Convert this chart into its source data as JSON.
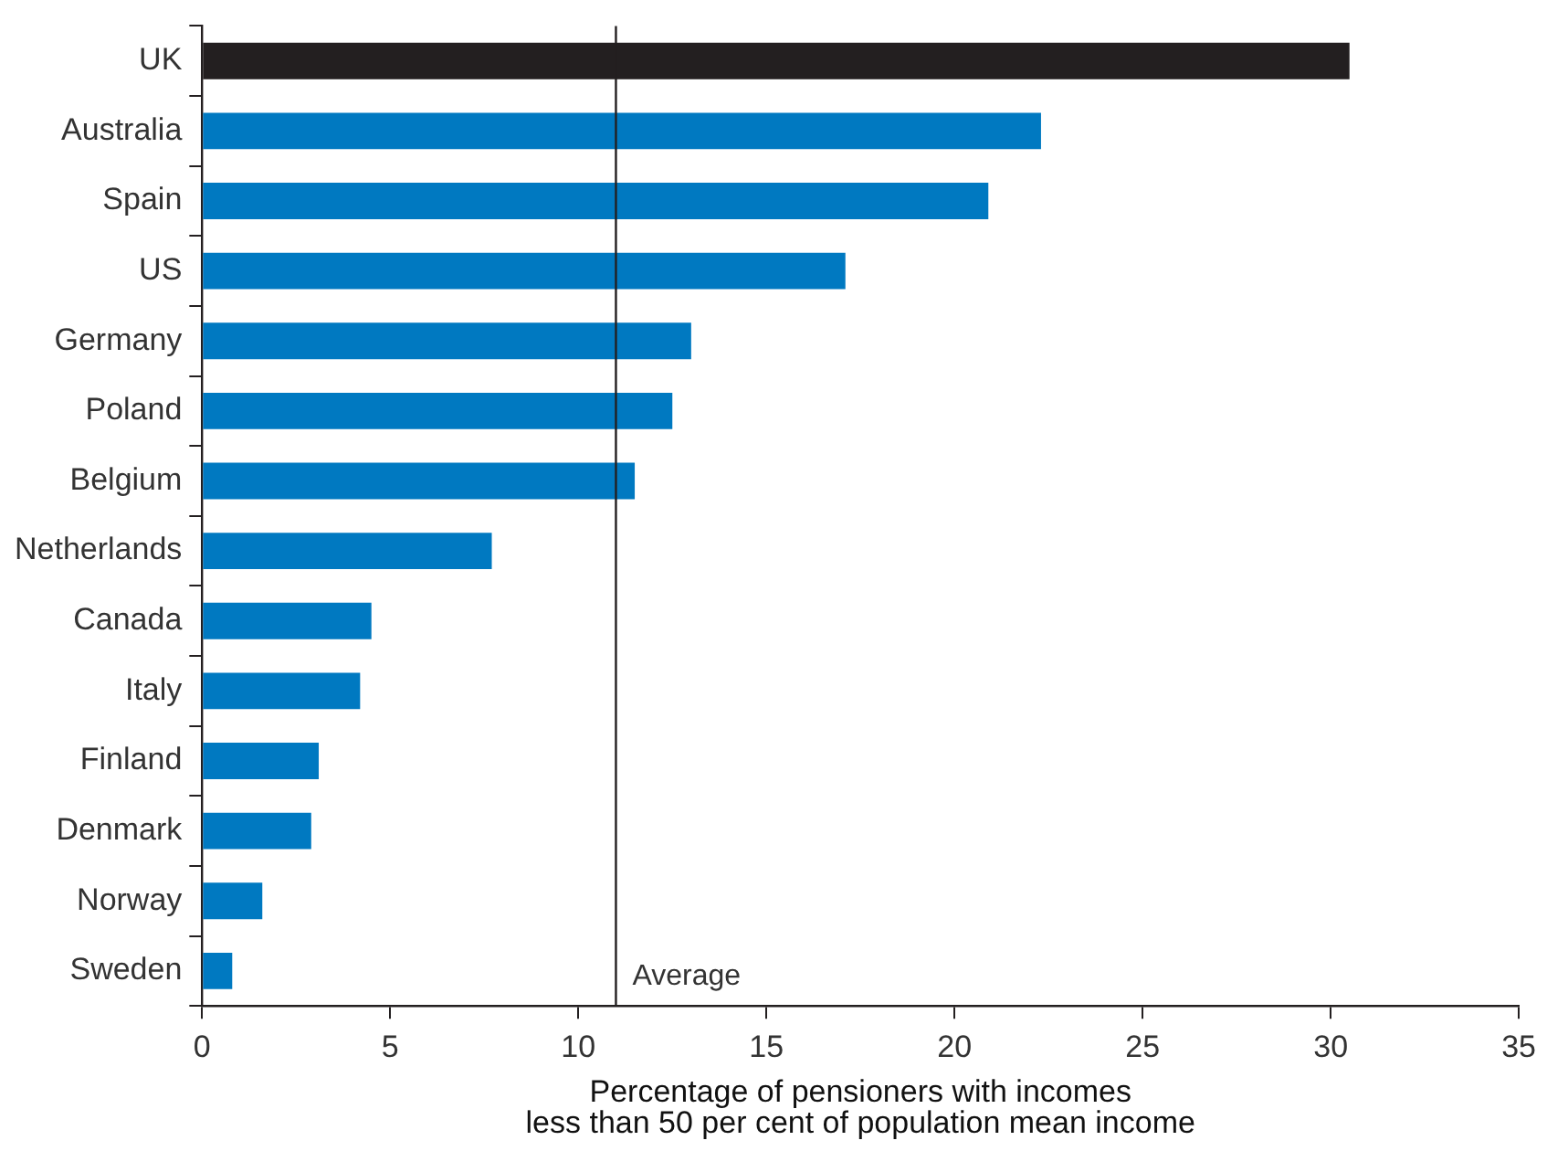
{
  "chart_data": {
    "type": "bar",
    "orientation": "horizontal",
    "categories": [
      "UK",
      "Australia",
      "Spain",
      "US",
      "Germany",
      "Poland",
      "Belgium",
      "Netherlands",
      "Canada",
      "Italy",
      "Finland",
      "Denmark",
      "Norway",
      "Sweden"
    ],
    "values": [
      30.5,
      22.3,
      20.9,
      17.1,
      13.0,
      12.5,
      11.5,
      7.7,
      4.5,
      4.2,
      3.1,
      2.9,
      1.6,
      0.8
    ],
    "colors": [
      "#231f20",
      "#0079c1",
      "#0079c1",
      "#0079c1",
      "#0079c1",
      "#0079c1",
      "#0079c1",
      "#0079c1",
      "#0079c1",
      "#0079c1",
      "#0079c1",
      "#0079c1",
      "#0079c1",
      "#0079c1"
    ],
    "xlim": [
      0,
      35
    ],
    "xticks": [
      0,
      5,
      10,
      15,
      20,
      25,
      30,
      35
    ],
    "xlabel": "Percentage of pensioners with incomes\nless than 50 per cent of population mean income",
    "ref_lines": [
      {
        "axis": "x",
        "value": 11.0,
        "label": "Average",
        "color": "#231f20"
      }
    ],
    "grid": false,
    "legend": false
  }
}
